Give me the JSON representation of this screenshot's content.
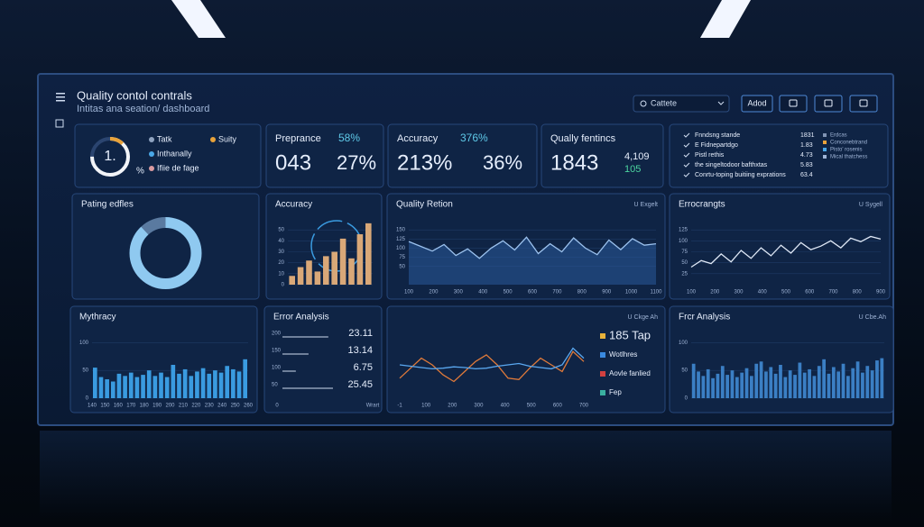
{
  "header": {
    "title": "Quality contol contrals",
    "subtitle": "Intitas ana seation/ dashboard",
    "search": "Cattete",
    "button": "Adod"
  },
  "kpis": {
    "gauge": {
      "label": "1.",
      "unit": "%",
      "percent": 75,
      "legend": [
        {
          "text": "Tatk",
          "color": "#8fa3c0"
        },
        {
          "text": "Suity",
          "color": "#e8a23a"
        },
        {
          "text": "Inthanally",
          "color": "#4aa8e8"
        },
        {
          "text": "Ifiie de fage",
          "color": "#d99aa0"
        }
      ]
    },
    "cards": [
      {
        "title": "Preprance",
        "delta": "58%",
        "main": "043",
        "secondary": "27%"
      },
      {
        "title": "Accuracy",
        "delta": "376%",
        "main": "213%",
        "secondary": "36%"
      },
      {
        "title": "Qually fentincs",
        "delta": "4,109",
        "main": "1843",
        "secondary": "105"
      }
    ],
    "list": {
      "rows": [
        {
          "label": "Fnndsng stande",
          "value": "1831"
        },
        {
          "label": "E Fidnepartdgo",
          "value": "1.83"
        },
        {
          "label": "Pistl rethis",
          "value": "4.73"
        },
        {
          "label": "the singeltodoor bafthxtas",
          "value": "5.83"
        },
        {
          "label": "Conrtu-toping buitiing exprations",
          "value": "63.4"
        }
      ],
      "legend": [
        {
          "text": "Erdcas",
          "color": "#7f93b3"
        },
        {
          "text": "Conconebtrand",
          "color": "#e8a23a"
        },
        {
          "text": "Pisto' rosenis",
          "color": "#4aa8e8"
        },
        {
          "text": "Mical thatchess",
          "color": "#9fb4d6"
        }
      ]
    }
  },
  "panels": [
    {
      "title": "Pating edfles",
      "chart": {
        "type": "pie",
        "values": [
          88,
          12
        ],
        "colors": [
          "#8fc9f0",
          "#5a7aa0"
        ]
      }
    },
    {
      "title": "Accuracy",
      "chart": {
        "type": "bar",
        "values": [
          8,
          16,
          22,
          12,
          26,
          30,
          42,
          24,
          46,
          56
        ],
        "color": "#d9a878",
        "ylim": [
          0,
          60
        ],
        "yticks": [
          0,
          10,
          20,
          30,
          40,
          50
        ]
      }
    },
    {
      "title": "Quality Retion",
      "tag": "U Exgelt",
      "chart": {
        "type": "area",
        "values": [
          118,
          105,
          92,
          110,
          80,
          98,
          72,
          100,
          120,
          95,
          130,
          85,
          112,
          90,
          128,
          100,
          82,
          122,
          96,
          126,
          108,
          112
        ],
        "color": "#9cc2ee",
        "ylim": [
          0,
          180
        ],
        "yticks": [
          50,
          75,
          100,
          125,
          150
        ],
        "xlabels": [
          "100",
          "200",
          "300",
          "400",
          "500",
          "600",
          "700",
          "800",
          "900",
          "1000",
          "1100"
        ]
      }
    },
    {
      "title": "Errocrangts",
      "tag": "U Sygell",
      "chart": {
        "type": "line",
        "values": [
          40,
          55,
          48,
          70,
          52,
          78,
          60,
          84,
          66,
          90,
          72,
          96,
          80,
          88,
          100,
          84,
          106,
          98,
          110,
          104
        ],
        "color": "#dfe8f6",
        "ylim": [
          0,
          150
        ],
        "yticks": [
          25,
          50,
          75,
          100,
          125
        ],
        "xlabels": [
          "100",
          "200",
          "300",
          "400",
          "500",
          "600",
          "700",
          "800",
          "900"
        ]
      }
    },
    {
      "title": "Mythracy",
      "chart": {
        "type": "bar",
        "values": [
          55,
          38,
          34,
          30,
          44,
          40,
          46,
          38,
          42,
          50,
          40,
          46,
          38,
          60,
          44,
          52,
          40,
          48,
          54,
          44,
          50,
          46,
          58,
          52,
          48,
          70
        ],
        "color": "#3a9be0",
        "ylim": [
          0,
          120
        ],
        "yticks": [
          0,
          50,
          100
        ],
        "xlabels": [
          "140",
          "150",
          "160",
          "170",
          "180",
          "190",
          "200",
          "210",
          "220",
          "230",
          "240",
          "250",
          "260"
        ]
      }
    },
    {
      "title": "Error Analysis",
      "chart": {
        "type": "hlines",
        "values": [
          23.11,
          13.14,
          6.75,
          25.45
        ],
        "categories": [
          "200",
          "150",
          "100",
          "50"
        ],
        "xlim": [
          0,
          30
        ],
        "xlabels": [
          "0",
          "Wrart"
        ]
      }
    },
    {
      "tag": "U Ckge Ah",
      "chart": {
        "type": "line",
        "series": [
          {
            "color": "#e07a3a",
            "values": [
              30,
              45,
              60,
              50,
              35,
              25,
              40,
              55,
              65,
              50,
              30,
              28,
              45,
              60,
              50,
              40,
              70,
              55
            ]
          },
          {
            "color": "#5aa8f0",
            "values": [
              50,
              48,
              46,
              44,
              45,
              47,
              46,
              44,
              45,
              48,
              50,
              52,
              48,
              46,
              44,
              50,
              75,
              60
            ]
          }
        ],
        "ylim": [
          0,
          100
        ],
        "xlabels": [
          "-1",
          "100",
          "200",
          "300",
          "400",
          "500",
          "600",
          "700"
        ],
        "legend": [
          {
            "text": "185 Tap",
            "color": "#e8b23a"
          },
          {
            "text": "Wotlhres",
            "color": "#3a8ae0"
          },
          {
            "text": "Aovle fanlied",
            "color": "#d04040"
          },
          {
            "text": "Fep",
            "color": "#3ab0a0"
          }
        ]
      }
    },
    {
      "title": "Frcr Analysis",
      "tag": "U Cbe.Ah",
      "chart": {
        "type": "bar",
        "values": [
          62,
          48,
          40,
          52,
          36,
          44,
          58,
          42,
          50,
          38,
          46,
          54,
          40,
          62,
          66,
          48,
          56,
          44,
          60,
          38,
          50,
          42,
          64,
          46,
          52,
          40,
          58,
          70,
          44,
          56,
          48,
          62,
          40,
          54,
          66,
          46,
          58,
          50,
          68,
          72
        ],
        "color": "#3b7fc4",
        "ylim": [
          0,
          120
        ],
        "yticks": [
          0,
          50,
          100
        ]
      }
    }
  ]
}
